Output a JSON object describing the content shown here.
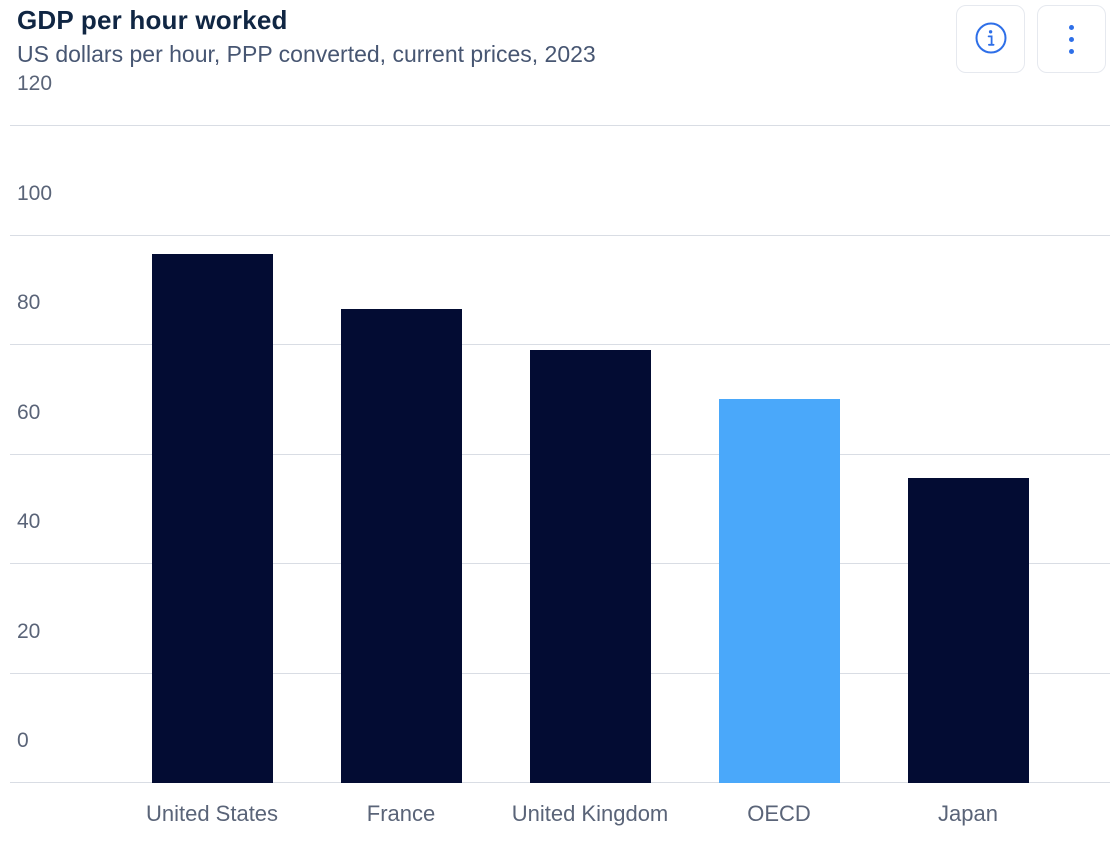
{
  "header": {
    "title": "GDP per hour worked",
    "subtitle": "US dollars per hour, PPP converted, current prices, 2023"
  },
  "buttons": {
    "info": "info",
    "more": "more options"
  },
  "colors": {
    "bar_default": "#030c33",
    "bar_highlight": "#4aa8fa",
    "accent_blue": "#2e6fe8",
    "title_text": "#102643",
    "subtitle_text": "#475672",
    "axis_text": "#5a6478",
    "gridline": "#d9dde4",
    "button_border": "#e6e9ef",
    "background": "#ffffff"
  },
  "chart_data": {
    "type": "bar",
    "title": "GDP per hour worked",
    "subtitle": "US dollars per hour, PPP converted, current prices, 2023",
    "categories": [
      "United States",
      "France",
      "United Kingdom",
      "OECD",
      "Japan"
    ],
    "values": [
      96.6,
      86.5,
      79.0,
      70.1,
      55.7
    ],
    "bar_colors": [
      "#030c33",
      "#030c33",
      "#030c33",
      "#4aa8fa",
      "#030c33"
    ],
    "highlighted_category": "OECD",
    "xlabel": "",
    "ylabel": "",
    "ylim": [
      0,
      120
    ],
    "yticks": [
      0,
      20,
      40,
      60,
      80,
      100,
      120
    ],
    "grid": true,
    "legend": false
  }
}
